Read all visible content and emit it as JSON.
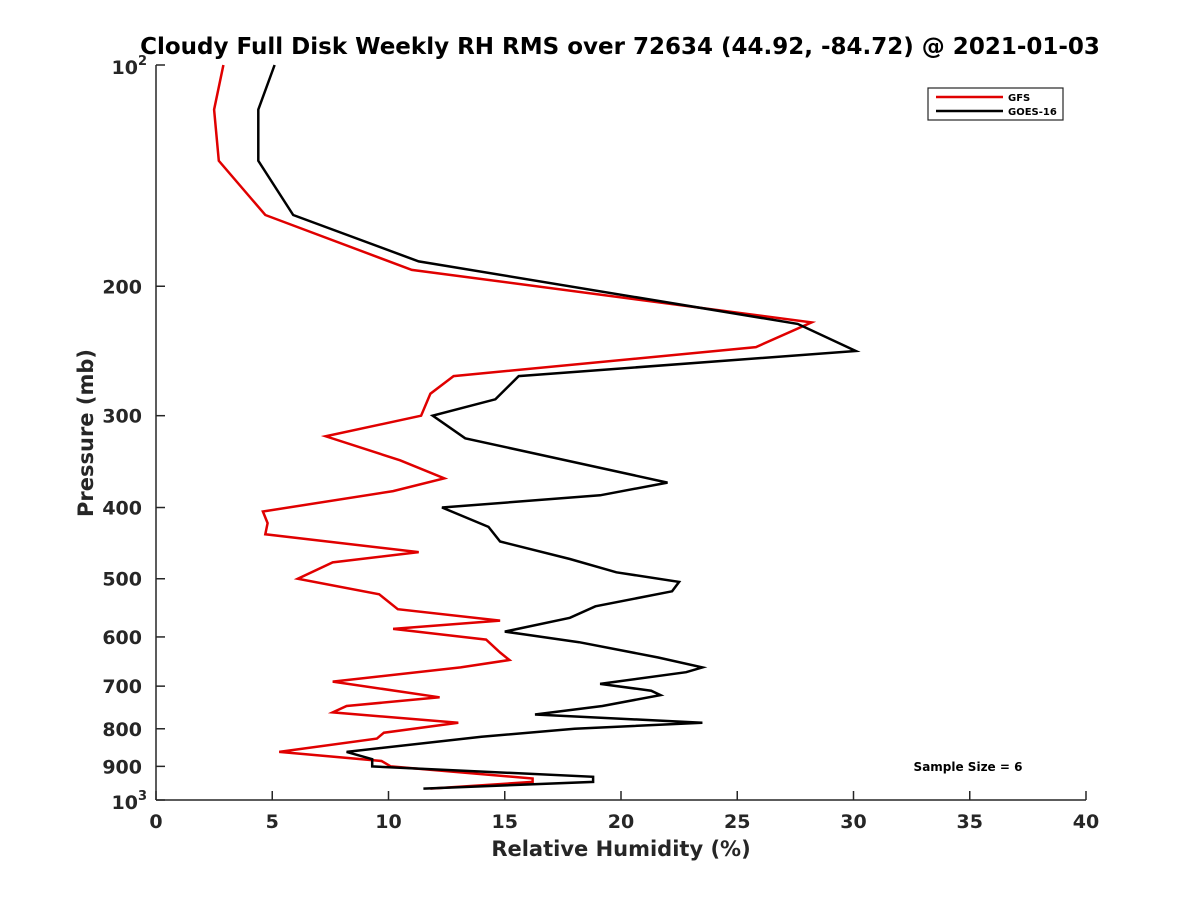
{
  "chart_data": {
    "type": "line",
    "title": "Cloudy Full Disk Weekly RH RMS over 72634 (44.92, -84.72) @ 2021-01-03",
    "xlabel": "Relative Humidity (%)",
    "ylabel": "Pressure (mb)",
    "xlim": [
      0,
      40
    ],
    "ylim": [
      100,
      1000
    ],
    "y_scale": "log",
    "y_reversed": true,
    "grid": false,
    "legend_position": "top-right",
    "annotation": "Sample Size = 6",
    "x_ticks": [
      {
        "value": 0,
        "label": "0"
      },
      {
        "value": 5,
        "label": "5"
      },
      {
        "value": 10,
        "label": "10"
      },
      {
        "value": 15,
        "label": "15"
      },
      {
        "value": 20,
        "label": "20"
      },
      {
        "value": 25,
        "label": "25"
      },
      {
        "value": 30,
        "label": "30"
      },
      {
        "value": 35,
        "label": "35"
      },
      {
        "value": 40,
        "label": "40"
      }
    ],
    "y_ticks": [
      {
        "value": 100,
        "base": "10",
        "exp": "2"
      },
      {
        "value": 200,
        "label": "200"
      },
      {
        "value": 300,
        "label": "300"
      },
      {
        "value": 400,
        "label": "400"
      },
      {
        "value": 500,
        "label": "500"
      },
      {
        "value": 600,
        "label": "600"
      },
      {
        "value": 700,
        "label": "700"
      },
      {
        "value": 800,
        "label": "800"
      },
      {
        "value": 900,
        "label": "900"
      },
      {
        "value": 1000,
        "base": "10",
        "exp": "3"
      }
    ],
    "series": [
      {
        "name": "GFS",
        "color": "#e00000",
        "points": [
          [
            2.9,
            100
          ],
          [
            2.5,
            115
          ],
          [
            2.7,
            135
          ],
          [
            4.7,
            160
          ],
          [
            11.0,
            190
          ],
          [
            28.2,
            224
          ],
          [
            25.8,
            242
          ],
          [
            12.8,
            265
          ],
          [
            11.8,
            280
          ],
          [
            11.4,
            300
          ],
          [
            7.3,
            320
          ],
          [
            10.5,
            345
          ],
          [
            12.4,
            365
          ],
          [
            10.2,
            380
          ],
          [
            4.6,
            405
          ],
          [
            4.8,
            420
          ],
          [
            4.7,
            435
          ],
          [
            11.3,
            460
          ],
          [
            7.6,
            475
          ],
          [
            6.1,
            500
          ],
          [
            9.6,
            525
          ],
          [
            10.4,
            550
          ],
          [
            14.8,
            570
          ],
          [
            10.2,
            585
          ],
          [
            14.2,
            605
          ],
          [
            14.8,
            630
          ],
          [
            15.2,
            645
          ],
          [
            13.1,
            660
          ],
          [
            7.6,
            690
          ],
          [
            12.2,
            725
          ],
          [
            8.2,
            745
          ],
          [
            7.6,
            760
          ],
          [
            13.0,
            785
          ],
          [
            9.8,
            810
          ],
          [
            9.5,
            825
          ],
          [
            5.3,
            860
          ],
          [
            9.7,
            885
          ],
          [
            10.1,
            900
          ],
          [
            16.2,
            935
          ],
          [
            16.2,
            945
          ],
          [
            11.8,
            965
          ]
        ]
      },
      {
        "name": "GOES-16",
        "color": "#000000",
        "points": [
          [
            5.1,
            100
          ],
          [
            4.4,
            115
          ],
          [
            4.4,
            135
          ],
          [
            5.9,
            160
          ],
          [
            11.3,
            185
          ],
          [
            27.6,
            225
          ],
          [
            30.1,
            245
          ],
          [
            15.6,
            265
          ],
          [
            14.6,
            285
          ],
          [
            11.9,
            300
          ],
          [
            13.3,
            322
          ],
          [
            22.0,
            370
          ],
          [
            19.1,
            385
          ],
          [
            12.3,
            400
          ],
          [
            14.3,
            425
          ],
          [
            14.8,
            445
          ],
          [
            17.8,
            470
          ],
          [
            19.8,
            490
          ],
          [
            22.5,
            505
          ],
          [
            22.2,
            520
          ],
          [
            18.9,
            545
          ],
          [
            17.8,
            565
          ],
          [
            15.0,
            590
          ],
          [
            18.2,
            610
          ],
          [
            21.6,
            640
          ],
          [
            23.5,
            660
          ],
          [
            22.8,
            670
          ],
          [
            19.1,
            695
          ],
          [
            21.3,
            710
          ],
          [
            21.7,
            720
          ],
          [
            19.2,
            745
          ],
          [
            16.3,
            765
          ],
          [
            23.5,
            785
          ],
          [
            18.0,
            800
          ],
          [
            14.0,
            820
          ],
          [
            8.2,
            860
          ],
          [
            9.3,
            880
          ],
          [
            9.3,
            900
          ],
          [
            18.8,
            930
          ],
          [
            18.8,
            945
          ],
          [
            11.5,
            965
          ]
        ]
      }
    ]
  }
}
